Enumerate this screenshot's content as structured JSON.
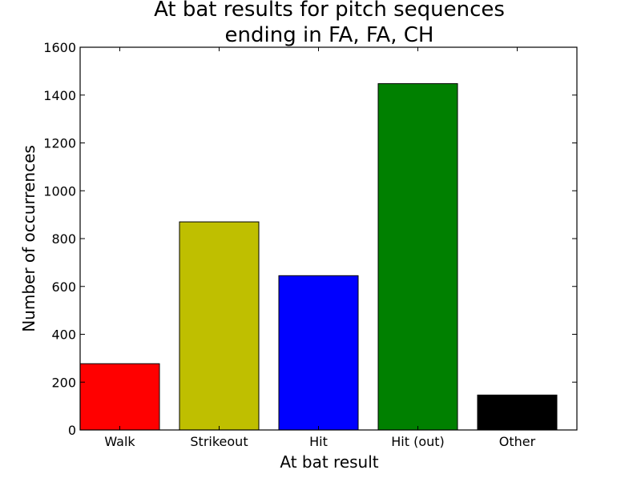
{
  "chart_data": {
    "type": "bar",
    "title_lines": [
      "At bat results for pitch sequences",
      "ending in FA, FA, CH"
    ],
    "xlabel": "At bat result",
    "ylabel": "Number of occurrences",
    "categories": [
      "Walk",
      "Strikeout",
      "Hit",
      "Hit (out)",
      "Other"
    ],
    "values": [
      277,
      870,
      645,
      1448,
      146
    ],
    "colors": [
      "#ff0000",
      "#bfbf00",
      "#0000ff",
      "#008000",
      "#000000"
    ],
    "ylim": [
      0,
      1600
    ],
    "yticks": [
      0,
      200,
      400,
      600,
      800,
      1000,
      1200,
      1400,
      1600
    ],
    "grid": false,
    "legend": "none"
  }
}
